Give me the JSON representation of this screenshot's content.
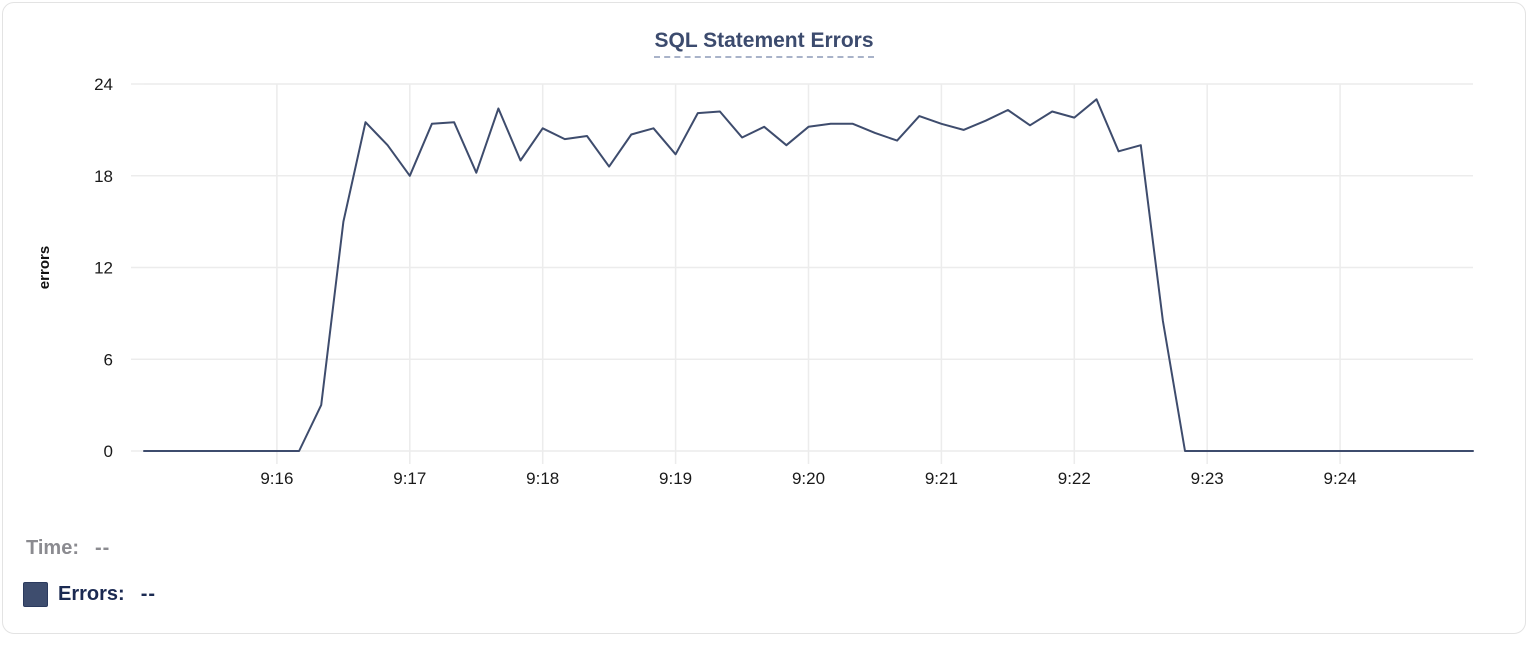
{
  "colors": {
    "line": "#3e4c6d",
    "grid": "#ececec",
    "axis_text": "#1a1a1a",
    "axis_title": "#111111",
    "title": "#3c4b6e",
    "title_underline": "#a9b3c9",
    "time_label": "#8b8b90",
    "errors_label": "#1b2a52",
    "card_border": "#e3e3e3"
  },
  "legend": {
    "time_label": "Time:",
    "time_value": "--",
    "errors_label": "Errors:",
    "errors_value": "--",
    "swatch_color": "#3e4d6e"
  },
  "chart_data": {
    "type": "line",
    "title": "SQL Statement Errors",
    "xlabel": "",
    "ylabel": "errors",
    "ylim": [
      0,
      24
    ],
    "y_ticks": [
      0,
      6,
      12,
      18,
      24
    ],
    "x_ticks": [
      "9:16",
      "9:17",
      "9:18",
      "9:19",
      "9:20",
      "9:21",
      "9:22",
      "9:23",
      "9:24"
    ],
    "x_range": [
      "9:15:00",
      "9:25:00"
    ],
    "grid": true,
    "legend_position": "bottom-left",
    "series": [
      {
        "name": "Errors",
        "x": [
          "9:15:00",
          "9:15:10",
          "9:15:20",
          "9:15:30",
          "9:15:40",
          "9:15:50",
          "9:16:00",
          "9:16:10",
          "9:16:20",
          "9:16:30",
          "9:16:40",
          "9:16:50",
          "9:17:00",
          "9:17:10",
          "9:17:20",
          "9:17:30",
          "9:17:40",
          "9:17:50",
          "9:18:00",
          "9:18:10",
          "9:18:20",
          "9:18:30",
          "9:18:40",
          "9:18:50",
          "9:19:00",
          "9:19:10",
          "9:19:20",
          "9:19:30",
          "9:19:40",
          "9:19:50",
          "9:20:00",
          "9:20:10",
          "9:20:20",
          "9:20:30",
          "9:20:40",
          "9:20:50",
          "9:21:00",
          "9:21:10",
          "9:21:20",
          "9:21:30",
          "9:21:40",
          "9:21:50",
          "9:22:00",
          "9:22:10",
          "9:22:20",
          "9:22:30",
          "9:22:40",
          "9:22:50",
          "9:23:00",
          "9:23:10",
          "9:23:20",
          "9:23:30",
          "9:23:40",
          "9:23:50",
          "9:24:00",
          "9:24:10",
          "9:24:20",
          "9:24:30",
          "9:24:40",
          "9:24:50",
          "9:25:00"
        ],
        "values": [
          0,
          0,
          0,
          0,
          0,
          0,
          0,
          0,
          3,
          15,
          21.5,
          20,
          18,
          21.4,
          21.5,
          18.2,
          22.4,
          19,
          21.1,
          20.4,
          20.6,
          18.6,
          20.7,
          21.1,
          19.4,
          22.1,
          22.2,
          20.5,
          21.2,
          20,
          21.2,
          21.4,
          21.4,
          20.8,
          20.3,
          21.9,
          21.4,
          21,
          21.6,
          22.3,
          21.3,
          22.2,
          21.8,
          23,
          19.6,
          20,
          8.5,
          0,
          0,
          0,
          0,
          0,
          0,
          0,
          0,
          0,
          0,
          0,
          0,
          0,
          0
        ]
      }
    ]
  }
}
